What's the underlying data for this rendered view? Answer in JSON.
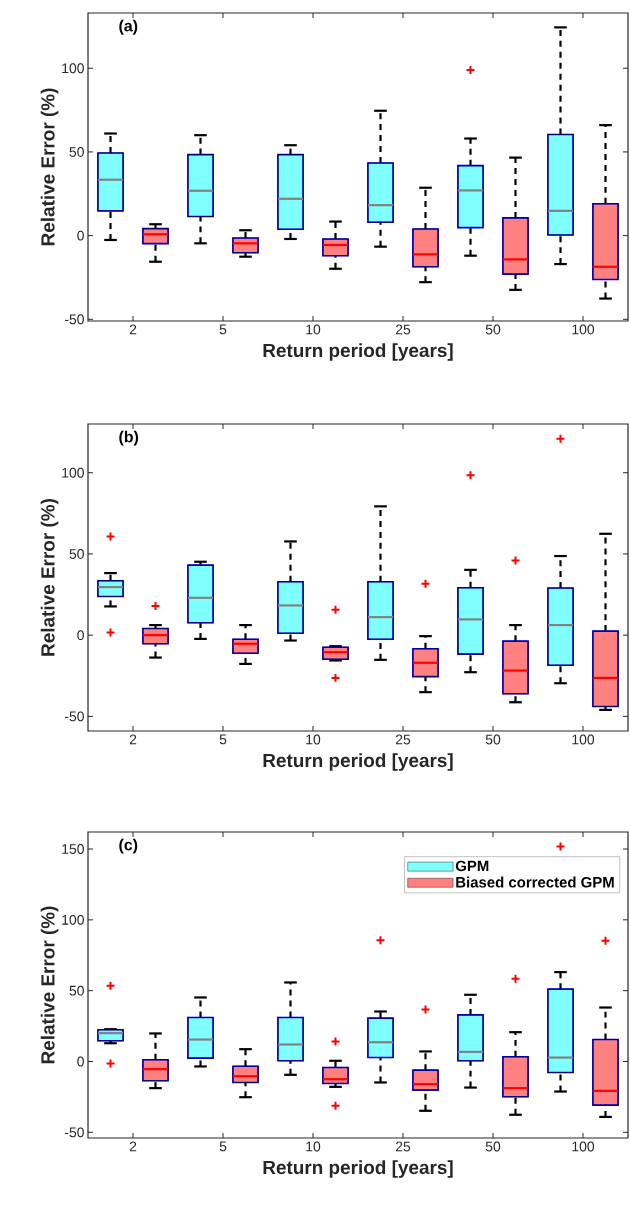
{
  "chart_data": [
    {
      "type": "box",
      "title": "(a)",
      "xlabel": "Return period [years]",
      "ylabel": "Relative Error (%)",
      "categories": [
        "2",
        "5",
        "10",
        "25",
        "50",
        "100"
      ],
      "ylim": [
        -51,
        133
      ],
      "yticks": [
        -50,
        0,
        50,
        100
      ],
      "series": [
        {
          "color": "#80ffff",
          "boxes": [
            {
              "low": -2.6,
              "q1": 14.8,
              "median": 33.4,
              "q3": 49.4,
              "high": 61
            },
            {
              "low": -4.6,
              "q1": 11.4,
              "median": 26.8,
              "q3": 48.4,
              "high": 60
            },
            {
              "low": -2,
              "q1": 3.8,
              "median": 22,
              "q3": 48.4,
              "high": 54
            },
            {
              "low": -6.6,
              "q1": 8,
              "median": 18.2,
              "q3": 43.4,
              "high": 74.6
            },
            {
              "low": -12,
              "q1": 4.8,
              "median": 27,
              "q3": 41.8,
              "high": 58,
              "outliers": [
                99
              ]
            },
            {
              "low": -17,
              "q1": 0.4,
              "median": 14.8,
              "q3": 60.4,
              "high": 124.4
            }
          ]
        },
        {
          "color": "#ff8080",
          "boxes": [
            {
              "low": -15.6,
              "q1": -4.8,
              "median": 0.8,
              "q3": 4.2,
              "high": 6.8
            },
            {
              "low": -12.6,
              "q1": -10.2,
              "median": -4.6,
              "q3": -1.4,
              "high": 3.2
            },
            {
              "low": -19.8,
              "q1": -12,
              "median": -5.6,
              "q3": -2,
              "high": 8.4
            },
            {
              "low": -27.8,
              "q1": -18.6,
              "median": -11.2,
              "q3": 4,
              "high": 28.6
            },
            {
              "low": -32.4,
              "q1": -23,
              "median": -14.2,
              "q3": 10.6,
              "high": 46.6
            },
            {
              "low": -37.6,
              "q1": -26.2,
              "median": -18.6,
              "q3": 19,
              "high": 66
            }
          ]
        }
      ]
    },
    {
      "type": "box",
      "title": "(b)",
      "xlabel": "Return period [years]",
      "ylabel": "Relative Error (%)",
      "categories": [
        "2",
        "5",
        "10",
        "25",
        "50",
        "100"
      ],
      "ylim": [
        -59,
        130
      ],
      "yticks": [
        -50,
        0,
        50,
        100
      ],
      "series": [
        {
          "color": "#80ffff",
          "boxes": [
            {
              "low": 17.7,
              "q1": 23.8,
              "median": 29.6,
              "q3": 33.5,
              "high": 38.2,
              "outliers": [
                60.8,
                1.6
              ]
            },
            {
              "low": -2.3,
              "q1": 7.6,
              "median": 23,
              "q3": 43.1,
              "high": 45.2
            },
            {
              "low": -3.3,
              "q1": 1.2,
              "median": 18.3,
              "q3": 32.9,
              "high": 57.7
            },
            {
              "low": -15.2,
              "q1": -2.5,
              "median": 11.1,
              "q3": 32.9,
              "high": 79.3
            },
            {
              "low": -22.8,
              "q1": -11.7,
              "median": 9.7,
              "q3": 29.2,
              "high": 40.2,
              "outliers": [
                98.4
              ]
            },
            {
              "low": -29.6,
              "q1": -18.5,
              "median": 6.2,
              "q3": 29,
              "high": 48.7,
              "outliers": [
                120.9
              ]
            }
          ]
        },
        {
          "color": "#ff8080",
          "boxes": [
            {
              "low": -13.8,
              "q1": -5.3,
              "median": 0,
              "q3": 4.1,
              "high": 6.2,
              "outliers": [
                17.9
              ]
            },
            {
              "low": -17.7,
              "q1": -11.1,
              "median": -5.3,
              "q3": -2.5,
              "high": 6.2
            },
            {
              "low": -15.6,
              "q1": -14.8,
              "median": -10.5,
              "q3": -7.4,
              "high": -6.8,
              "outliers": [
                15.6,
                -26.3
              ]
            },
            {
              "low": -35.1,
              "q1": -25.5,
              "median": -17,
              "q3": -8.4,
              "high": -0.6,
              "outliers": [
                31.6
              ]
            },
            {
              "low": -41.3,
              "q1": -36.1,
              "median": -21.8,
              "q3": -3.7,
              "high": 6.2,
              "outliers": [
                46
              ]
            },
            {
              "low": -46,
              "q1": -43.9,
              "median": -26.3,
              "q3": 2.5,
              "high": 62.4
            }
          ]
        }
      ]
    },
    {
      "type": "box",
      "title": "(c)",
      "xlabel": "Return period [years]",
      "ylabel": "Relative Error (%)",
      "categories": [
        "2",
        "5",
        "10",
        "25",
        "50",
        "100"
      ],
      "ylim": [
        -54,
        162
      ],
      "yticks": [
        -50,
        0,
        50,
        100,
        150
      ],
      "legend": "top right",
      "series": [
        {
          "name": "GPM",
          "color": "#80ffff",
          "boxes": [
            {
              "low": 12.9,
              "q1": 14.6,
              "median": 20,
              "q3": 22.4,
              "high": 22.8,
              "outliers": [
                53.4,
                -1.4
              ]
            },
            {
              "low": -3.5,
              "q1": 2.4,
              "median": 15.5,
              "q3": 31.1,
              "high": 45.2
            },
            {
              "low": -9.4,
              "q1": 0.5,
              "median": 12,
              "q3": 31.1,
              "high": 55.8
            },
            {
              "low": -14.8,
              "q1": 2.8,
              "median": 13.6,
              "q3": 30.6,
              "high": 35.3,
              "outliers": [
                85.6
              ]
            },
            {
              "low": -18.4,
              "q1": 0.5,
              "median": 6.8,
              "q3": 32.9,
              "high": 47.1
            },
            {
              "low": -21.2,
              "q1": -7.8,
              "median": 2.8,
              "q3": 51.1,
              "high": 63.1,
              "outliers": [
                151.8
              ]
            }
          ]
        },
        {
          "name": "Biased corrected GPM",
          "color": "#ff8080",
          "boxes": [
            {
              "low": -18.8,
              "q1": -13.6,
              "median": -5.4,
              "q3": 1.2,
              "high": 19.8
            },
            {
              "low": -25.2,
              "q1": -14.8,
              "median": -10.4,
              "q3": -3.3,
              "high": 8.7
            },
            {
              "low": -17.9,
              "q1": -15.5,
              "median": -12.5,
              "q3": -4.2,
              "high": 0.5,
              "outliers": [
                14.1,
                -31.3
              ]
            },
            {
              "low": -34.8,
              "q1": -20.2,
              "median": -16,
              "q3": -6.1,
              "high": 7.1,
              "outliers": [
                36.7
              ]
            },
            {
              "low": -37.6,
              "q1": -24.9,
              "median": -18.8,
              "q3": 3.3,
              "high": 20.7,
              "outliers": [
                58.4
              ]
            },
            {
              "low": -39.1,
              "q1": -30.8,
              "median": -20.7,
              "q3": 15.5,
              "high": 38.1,
              "outliers": [
                85.2
              ]
            }
          ]
        }
      ]
    }
  ]
}
